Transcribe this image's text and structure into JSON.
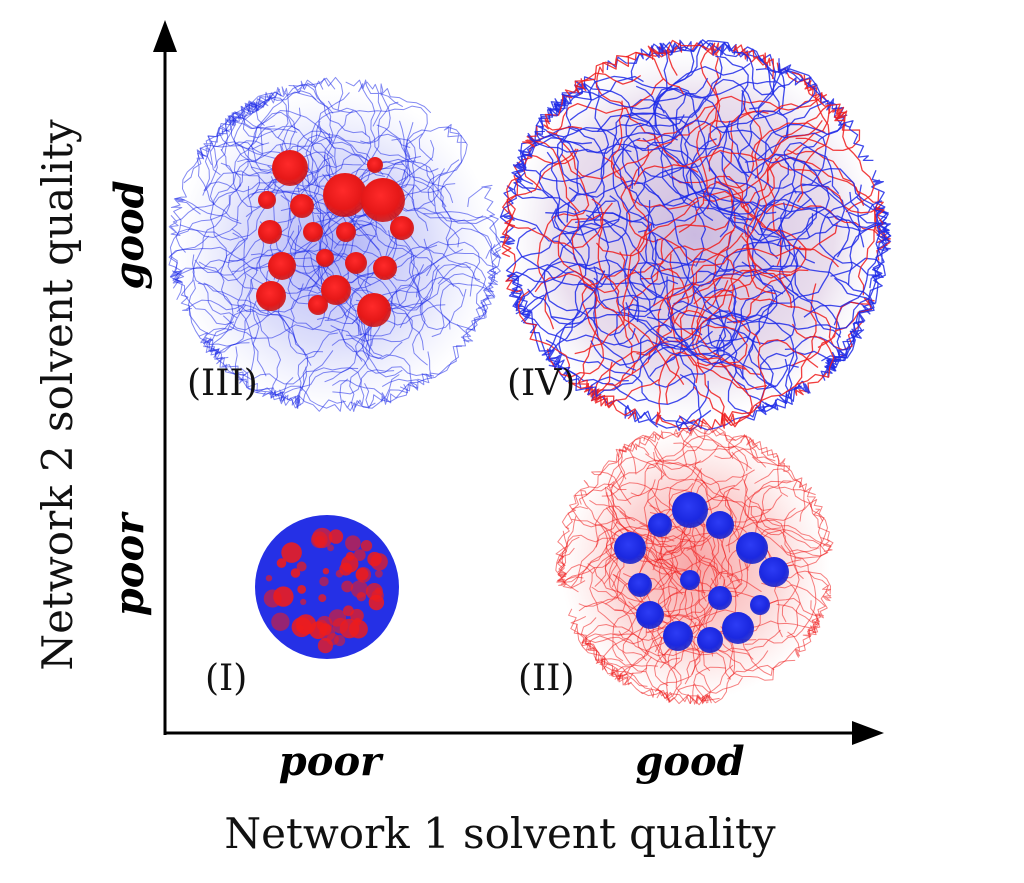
{
  "axes": {
    "y_title": "Network 2 solvent quality",
    "x_title": "Network 1 solvent quality",
    "y_levels": {
      "good": "good",
      "poor": "poor"
    },
    "x_levels": {
      "poor": "poor",
      "good": "good"
    }
  },
  "panels": [
    {
      "id": "I",
      "label": "(I)",
      "network1": "poor",
      "network2": "poor"
    },
    {
      "id": "II",
      "label": "(II)",
      "network1": "good",
      "network2": "poor"
    },
    {
      "id": "III",
      "label": "(III)",
      "network1": "poor",
      "network2": "good"
    },
    {
      "id": "IV",
      "label": "(IV)",
      "network1": "good",
      "network2": "good"
    }
  ],
  "colors": {
    "network1": "#ee1c1c",
    "network2": "#1e2ae8",
    "axis": "#000000"
  }
}
